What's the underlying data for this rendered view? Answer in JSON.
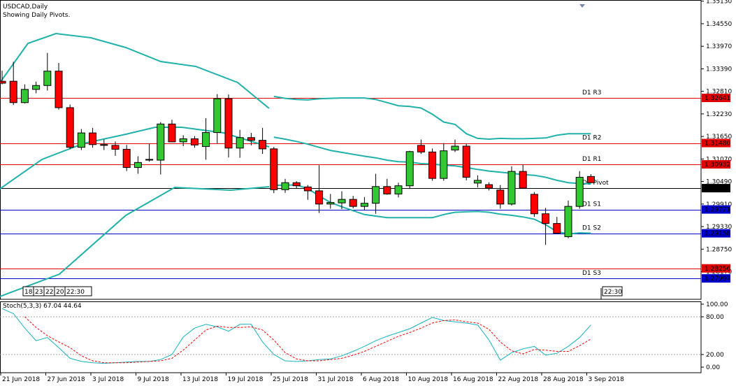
{
  "header": {
    "symbol_label": "USDCAD,Daily",
    "note": "Showing Daily Pivots."
  },
  "stoch": {
    "label": "Stoch(5,3,3) 67.04 44.64",
    "k_color": "#17b3c0",
    "d_color": "#ff0000",
    "axis_labels": [
      "100.00",
      "80.00",
      "20.00",
      "0.00"
    ],
    "levels": [
      100,
      80,
      20,
      0
    ]
  },
  "colors": {
    "bull": "#32c832",
    "bear": "#ff0000",
    "bands": "#20b2aa",
    "pivot_line": "#000000",
    "resistance_line": "#e00000",
    "support_line": "#0000c8"
  },
  "crosshair_tags": {
    "left": [
      "18:",
      "23:",
      "22:",
      "20:",
      "22:30"
    ],
    "right": "22:30"
  },
  "chart_data": {
    "type": "candlestick",
    "title": "USDCAD,Daily",
    "ylim": [
      1.2746,
      1.3516
    ],
    "y_ticks": [
      "1.35130",
      "1.34550",
      "1.33970",
      "1.33390",
      "1.32810",
      "1.32230",
      "1.31650",
      "1.31070",
      "1.30490",
      "1.29910",
      "1.29330",
      "1.28750",
      "1.28170"
    ],
    "x_ticks": [
      "21 Jun 2018",
      "27 Jun 2018",
      "3 Jul 2018",
      "9 Jul 2018",
      "13 Jul 2018",
      "19 Jul 2018",
      "25 Jul 2018",
      "31 Jul 2018",
      "6 Aug 2018",
      "10 Aug 2018",
      "16 Aug 2018",
      "22 Aug 2018",
      "28 Aug 2018",
      "3 Sep 2018"
    ],
    "candles": [
      [
        1.3307,
        1.3334,
        1.3299,
        1.3302
      ],
      [
        1.3307,
        1.3357,
        1.3246,
        1.3252
      ],
      [
        1.3252,
        1.3299,
        1.325,
        1.3286
      ],
      [
        1.3286,
        1.3306,
        1.3276,
        1.3296
      ],
      [
        1.3296,
        1.338,
        1.3283,
        1.3333
      ],
      [
        1.3333,
        1.3354,
        1.3234,
        1.3239
      ],
      [
        1.3239,
        1.3247,
        1.3132,
        1.3137
      ],
      [
        1.3137,
        1.3184,
        1.313,
        1.3174
      ],
      [
        1.3174,
        1.3187,
        1.3136,
        1.3144
      ],
      [
        1.3144,
        1.3157,
        1.313,
        1.3142
      ],
      [
        1.3142,
        1.3152,
        1.3115,
        1.3132
      ],
      [
        1.3132,
        1.3143,
        1.3076,
        1.3085
      ],
      [
        1.3085,
        1.3114,
        1.3069,
        1.3098
      ],
      [
        1.3104,
        1.3147,
        1.31,
        1.3106
      ],
      [
        1.3104,
        1.3202,
        1.3067,
        1.3197
      ],
      [
        1.3197,
        1.3208,
        1.315,
        1.3151
      ],
      [
        1.3151,
        1.3168,
        1.314,
        1.3159
      ],
      [
        1.3159,
        1.3166,
        1.3136,
        1.3143
      ],
      [
        1.3139,
        1.3212,
        1.3105,
        1.3175
      ],
      [
        1.3175,
        1.3274,
        1.3146,
        1.3262
      ],
      [
        1.3262,
        1.3273,
        1.3111,
        1.3135
      ],
      [
        1.3135,
        1.3182,
        1.311,
        1.3162
      ],
      [
        1.3162,
        1.3174,
        1.3142,
        1.3155
      ],
      [
        1.3155,
        1.3187,
        1.312,
        1.3133
      ],
      [
        1.3133,
        1.3138,
        1.3019,
        1.3028
      ],
      [
        1.3028,
        1.3056,
        1.302,
        1.3046
      ],
      [
        1.3046,
        1.305,
        1.3032,
        1.3038
      ],
      [
        1.3035,
        1.304,
        1.3002,
        1.3025
      ],
      [
        1.3025,
        1.3091,
        1.2968,
        1.2991
      ],
      [
        1.2991,
        1.3017,
        1.2979,
        1.2995
      ],
      [
        1.2994,
        1.3024,
        1.2978,
        1.3003
      ],
      [
        1.3003,
        1.3012,
        1.298,
        1.2985
      ],
      [
        1.2985,
        1.3009,
        1.2976,
        1.2993
      ],
      [
        1.2993,
        1.3069,
        1.2966,
        1.3036
      ],
      [
        1.3036,
        1.3056,
        1.3015,
        1.3017
      ],
      [
        1.3017,
        1.3046,
        1.3008,
        1.3038
      ],
      [
        1.3038,
        1.3128,
        1.3032,
        1.3126
      ],
      [
        1.3142,
        1.3157,
        1.312,
        1.3125
      ],
      [
        1.3125,
        1.3134,
        1.3051,
        1.3057
      ],
      [
        1.3057,
        1.3148,
        1.3051,
        1.3128
      ],
      [
        1.313,
        1.3157,
        1.3125,
        1.314
      ],
      [
        1.314,
        1.3147,
        1.3052,
        1.306
      ],
      [
        1.3045,
        1.3065,
        1.3034,
        1.3052
      ],
      [
        1.3041,
        1.3047,
        1.3026,
        1.3032
      ],
      [
        1.3027,
        1.304,
        1.2979,
        1.2991
      ],
      [
        1.2991,
        1.3088,
        1.2987,
        1.3075
      ],
      [
        1.3075,
        1.3093,
        1.3032,
        1.3032
      ],
      [
        1.3016,
        1.3022,
        1.2958,
        1.2966
      ],
      [
        1.2966,
        1.2981,
        1.2886,
        1.2941
      ],
      [
        1.2941,
        1.2958,
        1.2915,
        1.2916
      ],
      [
        1.2907,
        1.3,
        1.2903,
        1.2985
      ],
      [
        1.2985,
        1.3076,
        1.2979,
        1.306
      ],
      [
        1.3062,
        1.3068,
        1.3045,
        1.3046
      ]
    ],
    "bollinger": {
      "upper": [
        null,
        null,
        null,
        null,
        null,
        null,
        null,
        null,
        null,
        null,
        null,
        null,
        null,
        null,
        null,
        null,
        null,
        null,
        null,
        null,
        null,
        null,
        null,
        null,
        1.3268,
        1.3263,
        1.326,
        1.3259,
        1.3262,
        1.3263,
        1.3264,
        1.3264,
        1.3264,
        1.326,
        1.3252,
        1.3244,
        1.3242,
        1.3238,
        1.3222,
        1.3202,
        1.3196,
        1.3172,
        1.316,
        1.3158,
        1.316,
        1.3159,
        1.3159,
        1.316,
        1.3161,
        1.3168,
        1.3172,
        1.3172,
        1.3172
      ],
      "mid": [
        null,
        null,
        null,
        null,
        null,
        null,
        null,
        null,
        null,
        null,
        null,
        null,
        null,
        null,
        null,
        null,
        null,
        null,
        null,
        null,
        null,
        null,
        null,
        null,
        1.3163,
        1.3158,
        1.3152,
        1.3145,
        1.3137,
        1.3129,
        1.3124,
        1.3119,
        1.3114,
        1.311,
        1.3104,
        1.31,
        1.3099,
        1.3095,
        1.3094,
        1.3091,
        1.3089,
        1.3085,
        1.308,
        1.3076,
        1.3073,
        1.307,
        1.3067,
        1.3065,
        1.306,
        1.3052,
        1.3046,
        1.3044,
        1.3043
      ],
      "lower": [
        null,
        null,
        null,
        null,
        null,
        null,
        null,
        null,
        null,
        null,
        null,
        null,
        null,
        null,
        null,
        null,
        null,
        null,
        null,
        null,
        null,
        null,
        null,
        null,
        1.3039,
        1.304,
        1.304,
        1.3031,
        1.3012,
        1.2995,
        1.2984,
        1.2974,
        1.2964,
        1.296,
        1.2956,
        1.2956,
        1.2956,
        1.2956,
        1.2956,
        1.2964,
        1.297,
        1.2971,
        1.2972,
        1.297,
        1.2965,
        1.2962,
        1.2958,
        1.2952,
        1.2938,
        1.292,
        1.2914,
        1.2917,
        1.2916
      ]
    },
    "pivot_levels": [
      {
        "label": "D1 R3",
        "value": 1.32641,
        "kind": "resistance"
      },
      {
        "label": "D1 R2",
        "value": 1.3148,
        "kind": "resistance"
      },
      {
        "label": "D1 R1",
        "value": 1.30932,
        "kind": "resistance"
      },
      {
        "label": "D1 Pivot",
        "value": 1.30319,
        "kind": "pivot"
      },
      {
        "label": "D1 S1",
        "value": 1.29771,
        "kind": "support"
      },
      {
        "label": "D1 S2",
        "value": 1.29158,
        "kind": "support"
      },
      {
        "label": "",
        "value": 1.28256,
        "kind": "resistance"
      },
      {
        "label": "D1 S3",
        "value": 1.27997,
        "kind": "support"
      }
    ],
    "stochastic": {
      "k": [
        93,
        85,
        62,
        42,
        47,
        31,
        14,
        9,
        7,
        6,
        7,
        8,
        9,
        9,
        12,
        20,
        48,
        62,
        68,
        64,
        57,
        68,
        68,
        40,
        20,
        10,
        9,
        10,
        12,
        13,
        18,
        25,
        33,
        42,
        49,
        55,
        61,
        70,
        79,
        74,
        72,
        70,
        67,
        43,
        11,
        23,
        29,
        33,
        19,
        22,
        33,
        47,
        67
      ],
      "d": [
        null,
        null,
        80,
        63,
        50,
        40,
        31,
        18,
        10,
        7,
        7,
        7,
        8,
        9,
        10,
        14,
        27,
        43,
        59,
        65,
        63,
        63,
        64,
        59,
        43,
        23,
        13,
        10,
        10,
        12,
        14,
        19,
        25,
        33,
        41,
        49,
        55,
        62,
        70,
        74,
        75,
        72,
        70,
        60,
        40,
        26,
        21,
        28,
        27,
        25,
        25,
        34,
        44.64
      ]
    }
  }
}
